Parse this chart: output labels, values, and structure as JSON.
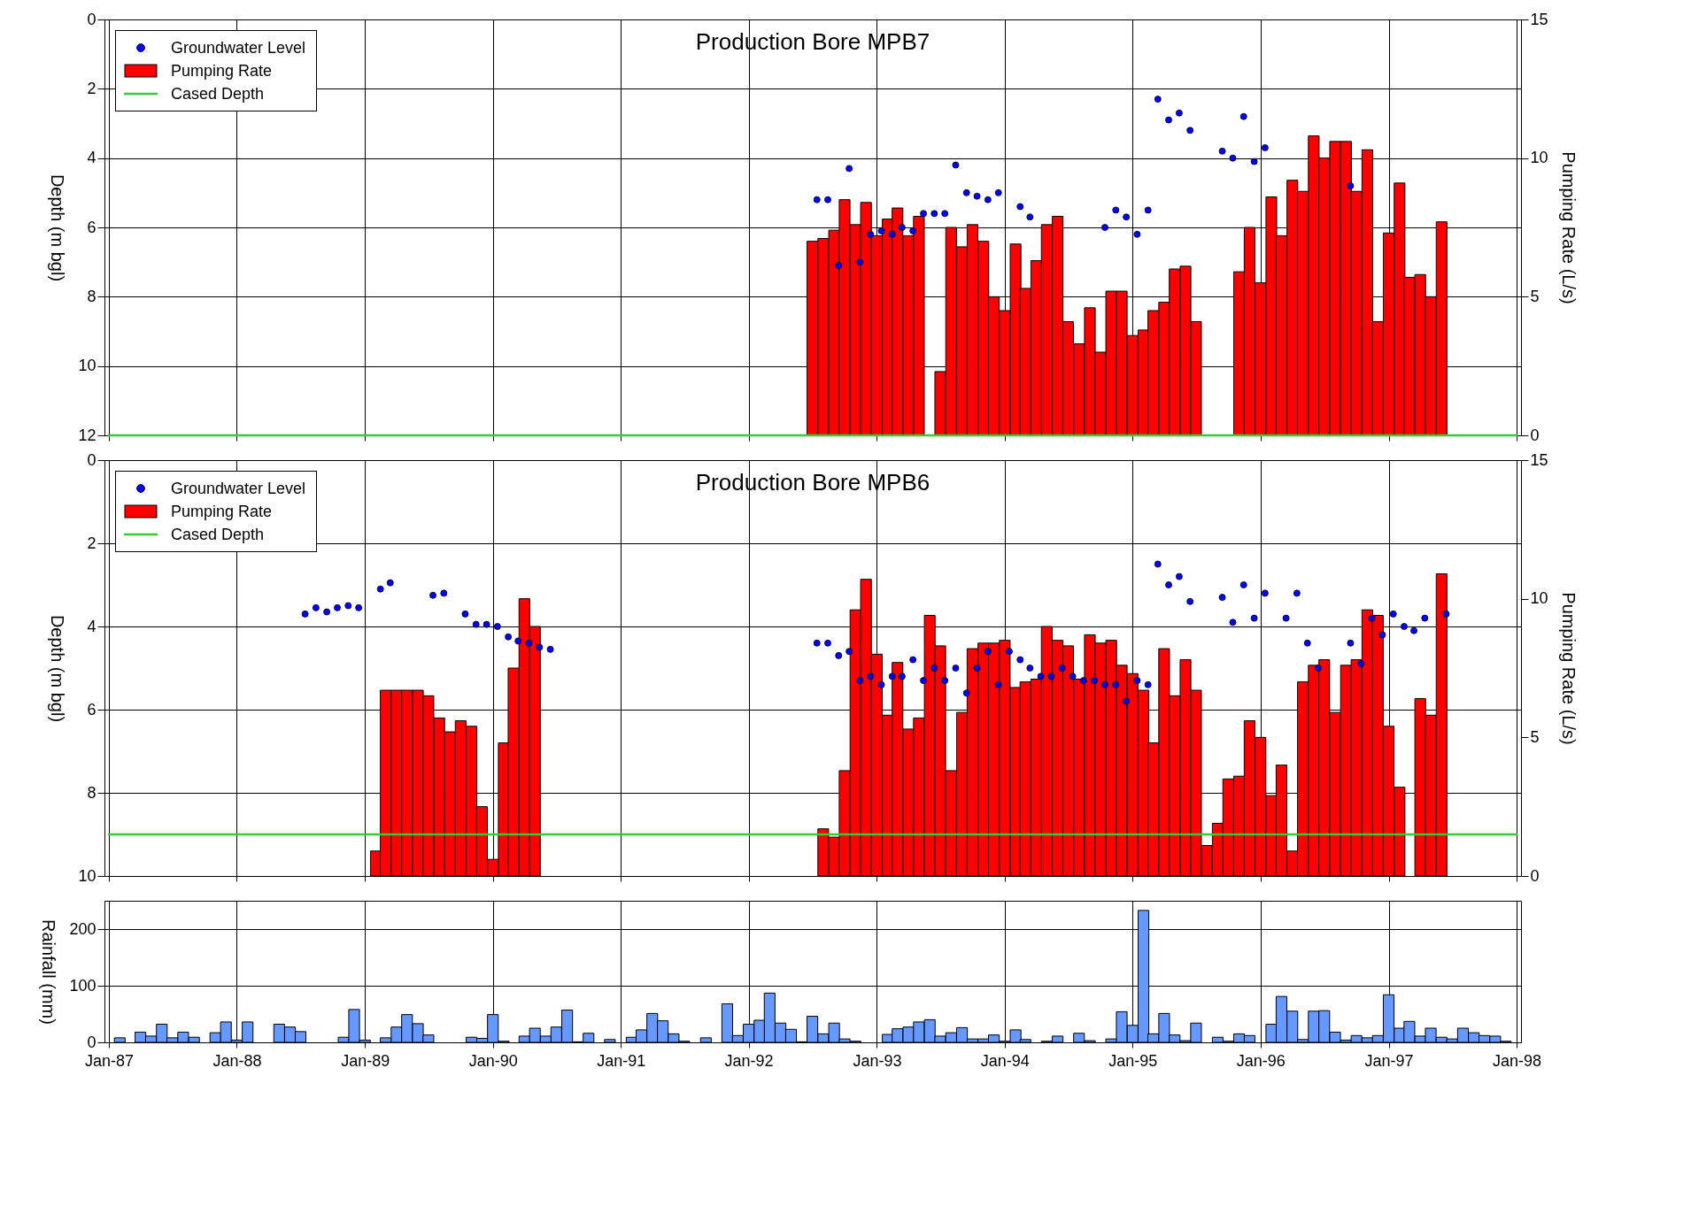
{
  "chart_data": [
    {
      "type": "bar",
      "title": "Production Bore MPB7",
      "ylabel": "Depth (m bgl)",
      "y2label": "Pumping Rate (L/s)",
      "xlim": [
        "1987-01",
        "1998-01"
      ],
      "xticks": [
        {
          "value": "1987-01",
          "label": null
        },
        {
          "value": "1988-01",
          "label": null
        },
        {
          "value": "1989-01",
          "label": null
        },
        {
          "value": "1990-01",
          "label": null
        },
        {
          "value": "1991-01",
          "label": null
        },
        {
          "value": "1992-01",
          "label": null
        },
        {
          "value": "1993-01",
          "label": null
        },
        {
          "value": "1994-01",
          "label": null
        },
        {
          "value": "1995-01",
          "label": null
        },
        {
          "value": "1996-01",
          "label": null
        },
        {
          "value": "1997-01",
          "label": null
        },
        {
          "value": "1998-01",
          "label": null
        }
      ],
      "ylim": [
        12,
        0
      ],
      "yticks": [
        0,
        2,
        4,
        6,
        8,
        10,
        12
      ],
      "y2lim": [
        0,
        15
      ],
      "y2ticks": [
        0,
        5,
        10,
        15
      ],
      "grid": true,
      "legend": "top left",
      "tick_labels": "y",
      "series": [
        {
          "name": "Groundwater Level",
          "type": "scatter",
          "marker": "circle",
          "color": "#0000ff",
          "x": [
            "1992-07-14",
            "1992-08-14",
            "1992-09-14",
            "1992-10-14",
            "1992-11-14",
            "1992-12-14",
            "1993-01-14",
            "1993-02-14",
            "1993-03-14",
            "1993-04-14",
            "1993-05-14",
            "1993-06-14",
            "1993-07-14",
            "1993-08-14",
            "1993-09-14",
            "1993-10-14",
            "1993-11-14",
            "1993-12-14",
            "1994-02-14",
            "1994-03-14",
            "1994-10-14",
            "1994-11-14",
            "1994-12-14",
            "1995-01-14",
            "1995-02-14",
            "1995-03-14",
            "1995-04-14",
            "1995-05-14",
            "1995-06-14",
            "1995-09-14",
            "1995-10-14",
            "1995-11-14",
            "1995-12-14",
            "1996-01-14",
            "1996-09-14"
          ],
          "values": [
            5.2,
            5.2,
            7.1,
            4.3,
            7.0,
            6.2,
            6.1,
            6.2,
            6.0,
            6.1,
            5.6,
            5.6,
            5.6,
            4.2,
            5.0,
            5.1,
            5.2,
            5.0,
            5.4,
            5.7,
            6.0,
            5.5,
            5.7,
            6.2,
            5.5,
            2.3,
            2.9,
            2.7,
            3.2,
            3.8,
            4.0,
            2.8,
            4.1,
            3.7,
            4.8
          ]
        },
        {
          "name": "Pumping Rate",
          "type": "bar",
          "axis": "y2",
          "color": "#ff0000",
          "x": [
            "1992-07",
            "1992-08",
            "1992-09",
            "1992-10",
            "1992-11",
            "1992-12",
            "1993-01",
            "1993-02",
            "1993-03",
            "1993-04",
            "1993-05",
            "1993-06",
            "1993-07",
            "1993-08",
            "1993-09",
            "1993-10",
            "1993-11",
            "1993-12",
            "1994-01",
            "1994-02",
            "1994-03",
            "1994-04",
            "1994-05",
            "1994-06",
            "1994-07",
            "1994-08",
            "1994-09",
            "1994-10",
            "1994-11",
            "1994-12",
            "1995-01",
            "1995-02",
            "1995-03",
            "1995-04",
            "1995-05",
            "1995-06",
            "1995-07",
            "1995-08",
            "1995-09",
            "1995-10",
            "1995-11",
            "1995-12",
            "1996-01",
            "1996-02",
            "1996-03",
            "1996-04",
            "1996-05",
            "1996-06",
            "1996-07",
            "1996-08",
            "1996-09",
            "1996-10",
            "1996-11",
            "1996-12",
            "1997-01",
            "1997-02",
            "1997-03",
            "1997-04",
            "1997-05",
            "1997-06"
          ],
          "values": [
            7.0,
            7.1,
            7.4,
            8.5,
            7.6,
            8.4,
            7.2,
            7.8,
            8.2,
            7.2,
            7.9,
            null,
            2.3,
            7.5,
            6.8,
            7.6,
            7.0,
            5.0,
            4.5,
            6.9,
            5.3,
            6.3,
            7.6,
            7.9,
            4.1,
            3.3,
            4.6,
            3.0,
            5.2,
            5.2,
            3.6,
            3.8,
            4.5,
            4.8,
            6.0,
            6.1,
            4.1,
            null,
            null,
            null,
            5.9,
            7.5,
            5.5,
            8.6,
            7.2,
            9.2,
            8.8,
            10.8,
            10.0,
            10.6,
            10.6,
            8.8,
            10.3,
            4.1,
            7.3,
            9.1,
            5.7,
            5.8,
            5.0,
            7.7
          ]
        },
        {
          "name": "Cased Depth",
          "type": "line",
          "color": "#33cc33",
          "x": [
            "1987-01",
            "1998-01"
          ],
          "values": [
            12,
            12
          ]
        }
      ]
    },
    {
      "type": "bar",
      "title": "Production Bore MPB6",
      "ylabel": "Depth (m bgl)",
      "y2label": "Pumping Rate (L/s)",
      "xlim": [
        "1987-01",
        "1998-01"
      ],
      "xticks": [
        {
          "value": "1987-01",
          "label": null
        },
        {
          "value": "1988-01",
          "label": null
        },
        {
          "value": "1989-01",
          "label": null
        },
        {
          "value": "1990-01",
          "label": null
        },
        {
          "value": "1991-01",
          "label": null
        },
        {
          "value": "1992-01",
          "label": null
        },
        {
          "value": "1993-01",
          "label": null
        },
        {
          "value": "1994-01",
          "label": null
        },
        {
          "value": "1995-01",
          "label": null
        },
        {
          "value": "1996-01",
          "label": null
        },
        {
          "value": "1997-01",
          "label": null
        },
        {
          "value": "1998-01",
          "label": null
        }
      ],
      "ylim": [
        10,
        0
      ],
      "yticks": [
        0,
        2,
        4,
        6,
        8,
        10
      ],
      "y2lim": [
        0,
        15
      ],
      "y2ticks": [
        0,
        5,
        10,
        15
      ],
      "grid": true,
      "legend": "top left",
      "tick_labels": "y",
      "series": [
        {
          "name": "Groundwater Level",
          "type": "scatter",
          "marker": "circle",
          "color": "#0000ff",
          "x": [
            "1988-07-14",
            "1988-08-14",
            "1988-09-14",
            "1988-10-14",
            "1988-11-14",
            "1988-12-14",
            "1989-02-14",
            "1989-03-14",
            "1989-07-14",
            "1989-08-14",
            "1989-10-14",
            "1989-11-14",
            "1989-12-14",
            "1990-01-14",
            "1990-02-14",
            "1990-03-14",
            "1990-04-14",
            "1990-05-14",
            "1990-06-14",
            "1992-07-14",
            "1992-08-14",
            "1992-09-14",
            "1992-10-14",
            "1992-11-14",
            "1992-12-14",
            "1993-01-14",
            "1993-02-14",
            "1993-03-14",
            "1993-04-14",
            "1993-05-14",
            "1993-06-14",
            "1993-07-14",
            "1993-08-14",
            "1993-09-14",
            "1993-10-14",
            "1993-11-14",
            "1993-12-14",
            "1994-01-14",
            "1994-02-14",
            "1994-03-14",
            "1994-04-14",
            "1994-05-14",
            "1994-06-14",
            "1994-07-14",
            "1994-08-14",
            "1994-09-14",
            "1994-10-14",
            "1994-11-14",
            "1994-12-14",
            "1995-01-14",
            "1995-02-14",
            "1995-03-14",
            "1995-04-14",
            "1995-05-14",
            "1995-06-14",
            "1995-09-14",
            "1995-10-14",
            "1995-11-14",
            "1995-12-14",
            "1996-01-14",
            "1996-03-14",
            "1996-04-14",
            "1996-05-14",
            "1996-06-14",
            "1996-09-14",
            "1996-10-14",
            "1996-11-14",
            "1996-12-14",
            "1997-01-14",
            "1997-02-14",
            "1997-03-14",
            "1997-04-14",
            "1997-06-14"
          ],
          "values": [
            3.7,
            3.55,
            3.65,
            3.55,
            3.5,
            3.55,
            3.1,
            2.95,
            3.25,
            3.2,
            3.7,
            3.95,
            3.95,
            4.0,
            4.25,
            4.35,
            4.4,
            4.5,
            4.55,
            4.4,
            4.4,
            4.7,
            4.6,
            5.3,
            5.2,
            5.4,
            5.2,
            5.2,
            4.8,
            5.3,
            5.0,
            5.3,
            5.0,
            5.6,
            5.0,
            4.6,
            5.4,
            4.6,
            4.8,
            5.0,
            5.2,
            5.2,
            5.0,
            5.2,
            5.3,
            5.3,
            5.4,
            5.4,
            5.8,
            5.3,
            5.4,
            2.5,
            3.0,
            2.8,
            3.4,
            3.3,
            3.9,
            3.0,
            3.8,
            3.2,
            3.8,
            3.2,
            4.4,
            5.0,
            4.4,
            4.9,
            3.8,
            4.2,
            3.7,
            4.0,
            4.1,
            3.8,
            3.7
          ]
        },
        {
          "name": "Pumping Rate",
          "type": "bar",
          "axis": "y2",
          "color": "#ff0000",
          "x": [
            "1989-02",
            "1989-03",
            "1989-04",
            "1989-05",
            "1989-06",
            "1989-07",
            "1989-08",
            "1989-09",
            "1989-10",
            "1989-11",
            "1989-12",
            "1990-01",
            "1990-02",
            "1990-03",
            "1990-04",
            "1990-05",
            "1992-08",
            "1992-09",
            "1992-10",
            "1992-11",
            "1992-12",
            "1993-01",
            "1993-02",
            "1993-03",
            "1993-04",
            "1993-05",
            "1993-06",
            "1993-07",
            "1993-08",
            "1993-09",
            "1993-10",
            "1993-11",
            "1993-12",
            "1994-01",
            "1994-02",
            "1994-03",
            "1994-04",
            "1994-05",
            "1994-06",
            "1994-07",
            "1994-08",
            "1994-09",
            "1994-10",
            "1994-11",
            "1994-12",
            "1995-01",
            "1995-02",
            "1995-03",
            "1995-04",
            "1995-05",
            "1995-06",
            "1995-07",
            "1995-08",
            "1995-09",
            "1995-10",
            "1995-11",
            "1995-12",
            "1996-01",
            "1996-02",
            "1996-03",
            "1996-04",
            "1996-05",
            "1996-06",
            "1996-07",
            "1996-08",
            "1996-09",
            "1996-10",
            "1996-11",
            "1996-12",
            "1997-01",
            "1997-02",
            "1997-03",
            "1997-04",
            "1997-05",
            "1997-06"
          ],
          "values": [
            0.9,
            6.7,
            6.7,
            6.7,
            6.7,
            6.5,
            5.7,
            5.2,
            5.6,
            5.4,
            2.5,
            0.6,
            4.8,
            7.5,
            10.0,
            9.0,
            1.7,
            1.4,
            3.8,
            9.6,
            10.7,
            8.0,
            5.8,
            7.7,
            5.3,
            5.7,
            9.4,
            8.3,
            3.8,
            5.9,
            8.2,
            8.4,
            8.4,
            8.5,
            6.8,
            7.0,
            7.1,
            9.0,
            8.5,
            8.3,
            7.1,
            8.7,
            8.4,
            8.5,
            7.6,
            7.3,
            6.7,
            4.8,
            8.2,
            6.5,
            7.8,
            6.7,
            1.1,
            1.9,
            3.5,
            3.6,
            5.6,
            5.0,
            2.9,
            4.0,
            0.9,
            7.0,
            7.6,
            7.8,
            5.9,
            7.6,
            7.8,
            9.6,
            9.4,
            5.4,
            3.2,
            null,
            6.4,
            5.8,
            10.9
          ]
        },
        {
          "name": "Cased Depth",
          "type": "line",
          "color": "#33cc33",
          "x": [
            "1987-01",
            "1998-01"
          ],
          "values": [
            9,
            9
          ]
        }
      ]
    },
    {
      "type": "bar",
      "ylabel": "Rainfall (mm)",
      "color": "#6699ff",
      "xlim": [
        "1987-01",
        "1998-01"
      ],
      "xticks": [
        {
          "value": "1987-01",
          "label": "Jan-87"
        },
        {
          "value": "1988-01",
          "label": "Jan-88"
        },
        {
          "value": "1989-01",
          "label": "Jan-89"
        },
        {
          "value": "1990-01",
          "label": "Jan-90"
        },
        {
          "value": "1991-01",
          "label": "Jan-91"
        },
        {
          "value": "1992-01",
          "label": "Jan-92"
        },
        {
          "value": "1993-01",
          "label": "Jan-93"
        },
        {
          "value": "1994-01",
          "label": "Jan-94"
        },
        {
          "value": "1995-01",
          "label": "Jan-95"
        },
        {
          "value": "1996-01",
          "label": "Jan-96"
        },
        {
          "value": "1997-01",
          "label": "Jan-97"
        },
        {
          "value": "1998-01",
          "label": "Jan-98"
        }
      ],
      "ylim": [
        0,
        250
      ],
      "yticks": [
        0,
        100,
        200
      ],
      "grid": true,
      "x": [
        "1987-02",
        "1987-03",
        "1987-04",
        "1987-05",
        "1987-06",
        "1987-07",
        "1987-08",
        "1987-09",
        "1987-10",
        "1987-11",
        "1987-12",
        "1988-01",
        "1988-02",
        "1988-03",
        "1988-04",
        "1988-05",
        "1988-06",
        "1988-07",
        "1988-08",
        "1988-09",
        "1988-10",
        "1988-11",
        "1988-12",
        "1989-01",
        "1989-02",
        "1989-03",
        "1989-04",
        "1989-05",
        "1989-06",
        "1989-07",
        "1989-08",
        "1989-09",
        "1989-10",
        "1989-11",
        "1989-12",
        "1990-01",
        "1990-02",
        "1990-03",
        "1990-04",
        "1990-05",
        "1990-06",
        "1990-07",
        "1990-08",
        "1990-09",
        "1990-10",
        "1990-11",
        "1990-12",
        "1991-01",
        "1991-02",
        "1991-03",
        "1991-04",
        "1991-05",
        "1991-06",
        "1991-07",
        "1991-08",
        "1991-09",
        "1991-10",
        "1991-11",
        "1991-12",
        "1992-01",
        "1992-02",
        "1992-03",
        "1992-04",
        "1992-05",
        "1992-06",
        "1992-07",
        "1992-08",
        "1992-09",
        "1992-10",
        "1992-11",
        "1992-12",
        "1993-01",
        "1993-02",
        "1993-03",
        "1993-04",
        "1993-05",
        "1993-06",
        "1993-07",
        "1993-08",
        "1993-09",
        "1993-10",
        "1993-11",
        "1993-12",
        "1994-01",
        "1994-02",
        "1994-03",
        "1994-04",
        "1994-05",
        "1994-06",
        "1994-07",
        "1994-08",
        "1994-09",
        "1994-10",
        "1994-11",
        "1994-12",
        "1995-01",
        "1995-02",
        "1995-03",
        "1995-04",
        "1995-05",
        "1995-06",
        "1995-07",
        "1995-08",
        "1995-09",
        "1995-10",
        "1995-11",
        "1995-12",
        "1996-01",
        "1996-02",
        "1996-03",
        "1996-04",
        "1996-05",
        "1996-06",
        "1996-07",
        "1996-08",
        "1996-09",
        "1996-10",
        "1996-11",
        "1996-12",
        "1997-01",
        "1997-02",
        "1997-03",
        "1997-04",
        "1997-05",
        "1997-06",
        "1997-07",
        "1997-08",
        "1997-09",
        "1997-10",
        "1997-11",
        "1997-12"
      ],
      "values": [
        8,
        null,
        18,
        11,
        32,
        8,
        18,
        9,
        null,
        17,
        36,
        4,
        36,
        null,
        null,
        32,
        27,
        19,
        null,
        null,
        null,
        9,
        58,
        4,
        null,
        8,
        27,
        49,
        33,
        13,
        null,
        null,
        null,
        9,
        7,
        49,
        2,
        null,
        11,
        25,
        11,
        27,
        57,
        1,
        16,
        null,
        5,
        null,
        9,
        22,
        51,
        38,
        15,
        2,
        null,
        8,
        null,
        68,
        12,
        32,
        39,
        87,
        34,
        23,
        1,
        46,
        15,
        34,
        6,
        2,
        null,
        null,
        14,
        24,
        27,
        36,
        40,
        11,
        17,
        26,
        6,
        6,
        13,
        2,
        22,
        5,
        null,
        2,
        11,
        null,
        16,
        3,
        null,
        6,
        54,
        30,
        233,
        15,
        51,
        13,
        3,
        34,
        null,
        9,
        2,
        15,
        12,
        null,
        32,
        81,
        55,
        5,
        55,
        56,
        18,
        4,
        12,
        8,
        12,
        84,
        25,
        37,
        11,
        25,
        9,
        6,
        25,
        17,
        12,
        11,
        2
      ]
    }
  ]
}
